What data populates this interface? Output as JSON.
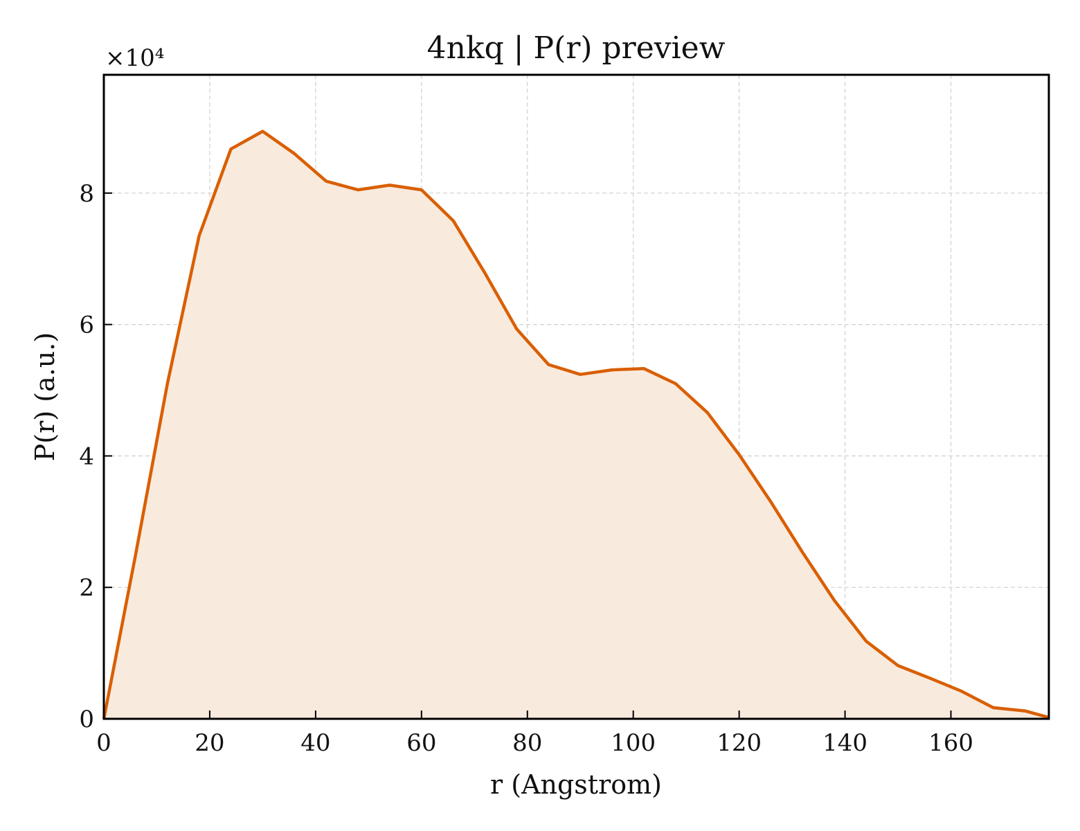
{
  "chart_data": {
    "type": "area",
    "title": "4nkq | P(r) preview",
    "xlabel": "r (Angstrom)",
    "ylabel": "P(r) (a.u.)",
    "y_scale_label": "×10⁴",
    "y_multiplier": 10000,
    "xlim": [
      0,
      178.5
    ],
    "ylim": [
      0,
      9.8
    ],
    "x_ticks": [
      0,
      20,
      40,
      60,
      80,
      100,
      120,
      140,
      160
    ],
    "y_ticks": [
      0,
      2,
      4,
      6,
      8
    ],
    "x_tick_labels": [
      "0",
      "20",
      "40",
      "60",
      "80",
      "100",
      "120",
      "140",
      "160"
    ],
    "y_tick_labels": [
      "0",
      "2",
      "4",
      "6",
      "8"
    ],
    "grid": true,
    "line_color": "#d95f02",
    "fill_color": "#f9eade",
    "series": [
      {
        "x": [
          0,
          6,
          12,
          18,
          24,
          30,
          36,
          42,
          48,
          54,
          60,
          66,
          72,
          78,
          84,
          90,
          96,
          102,
          108,
          114,
          120,
          126,
          132,
          138,
          144,
          150,
          156,
          162,
          168,
          174,
          178.5
        ],
        "values": [
          0,
          2.5,
          5.1,
          7.35,
          8.67,
          8.94,
          8.6,
          8.18,
          8.05,
          8.12,
          8.05,
          7.58,
          6.78,
          5.93,
          5.39,
          5.24,
          5.31,
          5.33,
          5.1,
          4.66,
          4.02,
          3.3,
          2.53,
          1.8,
          1.18,
          0.81,
          0.62,
          0.42,
          0.17,
          0.12,
          0.02
        ]
      }
    ]
  }
}
